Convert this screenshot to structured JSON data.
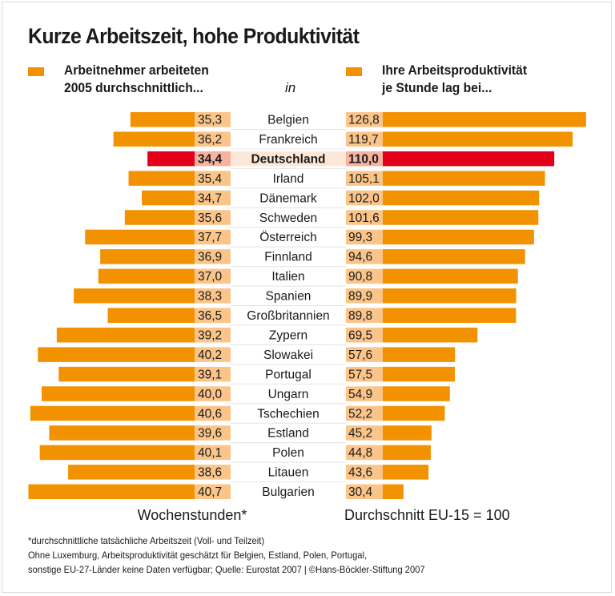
{
  "chart_data": {
    "type": "bar",
    "title": "Kurze Arbeitszeit, hohe Produktivität",
    "legend": [
      {
        "label": "Arbeitnehmer arbeiteten\n2005 durchschnittlich...",
        "color": "#f39200"
      },
      {
        "label": "Ihre  Arbeitsproduktivität\nje Stunde lag bei...",
        "color": "#f39200"
      }
    ],
    "connector": "in",
    "highlight_color": "#e2001a",
    "bar_color": "#f39200",
    "value_box_color": "#fbc58a",
    "highlight_box_color": "#f5b3a0",
    "highlight_label_bg": "#fde8d8",
    "highlight_category": "Deutschland",
    "categories": [
      "Belgien",
      "Frankreich",
      "Deutschland",
      "Irland",
      "Dänemark",
      "Schweden",
      "Österreich",
      "Finnland",
      "Italien",
      "Spanien",
      "Großbritannien",
      "Zypern",
      "Slowakei",
      "Portugal",
      "Ungarn",
      "Tschechien",
      "Estland",
      "Polen",
      "Litauen",
      "Bulgarien"
    ],
    "series": [
      {
        "name": "Wochenstunden*",
        "values": [
          35.3,
          36.2,
          34.4,
          35.4,
          34.7,
          35.6,
          37.7,
          36.9,
          37.0,
          38.3,
          36.5,
          39.2,
          40.2,
          39.1,
          40.0,
          40.6,
          39.6,
          40.1,
          38.6,
          40.7
        ],
        "labels": [
          "35,3",
          "36,2",
          "34,4",
          "35,4",
          "34,7",
          "35,6",
          "37,7",
          "36,9",
          "37,0",
          "38,3",
          "36,5",
          "39,2",
          "40,2",
          "39,1",
          "40,0",
          "40,6",
          "39,6",
          "40,1",
          "38,6",
          "40,7"
        ]
      },
      {
        "name": "Durchschnitt EU-15 = 100",
        "values": [
          126.8,
          119.7,
          110.0,
          105.1,
          102.0,
          101.6,
          99.3,
          94.6,
          90.8,
          89.9,
          89.8,
          69.5,
          57.6,
          57.5,
          54.9,
          52.2,
          45.2,
          44.8,
          43.6,
          30.4
        ],
        "labels": [
          "126,8",
          "119,7",
          "110,0",
          "105,1",
          "102,0",
          "101,6",
          "99,3",
          "94,6",
          "90,8",
          "89,9",
          "89,8",
          "69,5",
          "57,6",
          "57,5",
          "54,9",
          "52,2",
          "45,2",
          "44,8",
          "43,6",
          "30,4"
        ]
      }
    ],
    "left_axis_baseline": 30,
    "xlabel_left": "Wochenstunden*",
    "xlabel_right": "Durchschnitt EU-15 = 100",
    "grid": false
  },
  "footnotes": [
    "*durchschnittliche tatsächliche Arbeitszeit (Voll- und Teilzeit)",
    "Ohne Luxemburg, Arbeitsproduktivität geschätzt für Belgien, Estland, Polen, Portugal,",
    "sonstige EU-27-Länder keine Daten verfügbar; Quelle: Eurostat 2007 | ©Hans-Böckler-Stiftung 2007"
  ]
}
